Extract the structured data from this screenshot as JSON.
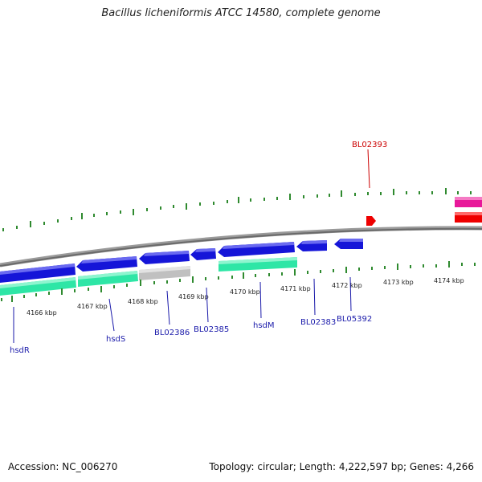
{
  "title": "Bacillus licheniformis ATCC 14580, complete genome",
  "footer": {
    "accession": "Accession: NC_006270",
    "summary": "Topology: circular; Length: 4,222,597 bp; Genes: 4,266"
  },
  "ticks": [
    {
      "label": "4166 kbp"
    },
    {
      "label": "4167 kbp"
    },
    {
      "label": "4168 kbp"
    },
    {
      "label": "4169 kbp"
    },
    {
      "label": "4170 kbp"
    },
    {
      "label": "4171 kbp"
    },
    {
      "label": "4172 kbp"
    },
    {
      "label": "4173 kbp"
    },
    {
      "label": "4174 kbp"
    }
  ],
  "genes": [
    {
      "label": "BL02393",
      "color": "#cc0000"
    },
    {
      "label": "hsdR",
      "color": "#1a1aaa"
    },
    {
      "label": "hsdS",
      "color": "#1a1aaa"
    },
    {
      "label": "BL02386",
      "color": "#1a1aaa"
    },
    {
      "label": "BL02385",
      "color": "#1a1aaa"
    },
    {
      "label": "hsdM",
      "color": "#1a1aaa"
    },
    {
      "label": "BL02383",
      "color": "#1a1aaa"
    },
    {
      "label": "BL05392",
      "color": "#1a1aaa"
    }
  ],
  "colors": {
    "cds": "#1515d8",
    "gene": "#2ee6a6",
    "pseudo": "#c0c0c0",
    "trna": "#e8189a",
    "red_feature": "#ee0000",
    "tick": "#2f8a2f",
    "backbone": "#888888"
  }
}
